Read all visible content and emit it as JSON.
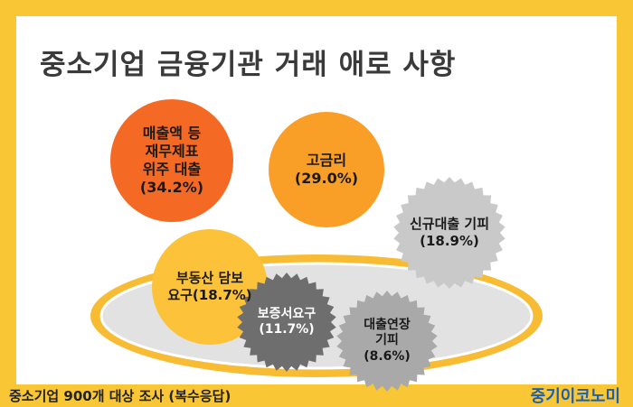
{
  "title": "중소기업 금융기관 거래 애로 사항",
  "chart_data": {
    "type": "bubble",
    "items": [
      {
        "label": "매출액 등\n재무제표\n위주 대출\n(34.2%)",
        "category": "매출액 등 재무제표 위주 대출",
        "value": 34.2,
        "color": "#F46A25",
        "text_color": "#1A1A1A",
        "shape": "circle"
      },
      {
        "label": "고금리\n(29.0%)",
        "category": "고금리",
        "value": 29.0,
        "color": "#F99F28",
        "text_color": "#1A1A1A",
        "shape": "circle"
      },
      {
        "label": "신규대출 기피\n(18.9%)",
        "category": "신규대출 기피",
        "value": 18.9,
        "color": "#C9C9C9",
        "text_color": "#1A1A1A",
        "shape": "seal"
      },
      {
        "label": "부동산 담보\n요구(18.7%)",
        "category": "부동산 담보 요구",
        "value": 18.7,
        "color": "#FBC23A",
        "text_color": "#1A1A1A",
        "shape": "circle"
      },
      {
        "label": "보증서요구\n(11.7%)",
        "category": "보증서요구",
        "value": 11.7,
        "color": "#6E6E6E",
        "text_color": "#FFFFFF",
        "shape": "seal"
      },
      {
        "label": "대출연장\n기피\n(8.6%)",
        "category": "대출연장 기피",
        "value": 8.6,
        "color": "#A9A9A9",
        "text_color": "#1A1A1A",
        "shape": "seal"
      }
    ]
  },
  "footer": {
    "note": "중소기업 900개 대상 조사 (복수응답)",
    "brand": "중기이코노미"
  },
  "colors": {
    "background": "#F9C636",
    "panel": "#FFFFFF",
    "bowl_fill": "#E2E2E2",
    "bowl_outline": "#FFFFFF",
    "bowl_rim": "#F7BC33"
  }
}
